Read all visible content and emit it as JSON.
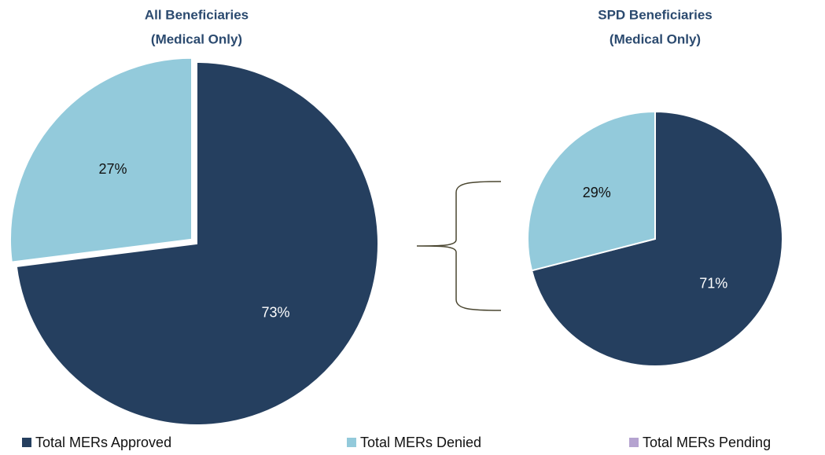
{
  "chart_data": [
    {
      "type": "pie",
      "title": "All Beneficiaries",
      "subtitle": "(Medical Only)",
      "categories": [
        "Total MERs Approved",
        "Total MERs Denied",
        "Total MERs Pending"
      ],
      "values": [
        73,
        27,
        0
      ],
      "value_labels": [
        "73%",
        "27%",
        null
      ],
      "colors": [
        "#253f5f",
        "#93cadb",
        "#b5a3d0"
      ],
      "exploded": [
        false,
        true,
        false
      ],
      "legend": "bottom"
    },
    {
      "type": "pie",
      "title": "SPD Beneficiaries",
      "subtitle": "(Medical Only)",
      "categories": [
        "Total MERs Approved",
        "Total MERs Denied",
        "Total MERs Pending"
      ],
      "values": [
        71,
        29,
        0
      ],
      "value_labels": [
        "71%",
        "29%",
        null
      ],
      "colors": [
        "#253f5f",
        "#93cadb",
        "#b5a3d0"
      ],
      "exploded": [
        false,
        false,
        false
      ]
    }
  ]
}
